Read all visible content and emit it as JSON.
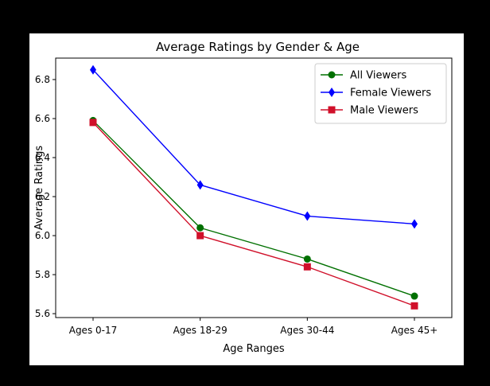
{
  "chart_data": {
    "type": "line",
    "title": "Average Ratings by Gender & Age",
    "xlabel": "Age Ranges",
    "ylabel": "Average Ratings",
    "categories": [
      "Ages 0-17",
      "Ages 18-29",
      "Ages 30-44",
      "Ages 45+"
    ],
    "ylim": [
      5.58,
      6.91
    ],
    "yticks": [
      5.6,
      5.8,
      6.0,
      6.2,
      6.4,
      6.6,
      6.8
    ],
    "ytick_labels": [
      "5.6",
      "5.8",
      "6.0",
      "6.2",
      "6.4",
      "6.6",
      "6.8"
    ],
    "grid": false,
    "legend_position": "top-right",
    "series": [
      {
        "name": "All Viewers",
        "color": "#007000",
        "marker": "circle",
        "values": [
          6.59,
          6.04,
          5.88,
          5.69
        ]
      },
      {
        "name": "Female Viewers",
        "color": "#0000ff",
        "marker": "diamond",
        "values": [
          6.85,
          6.26,
          6.1,
          6.06
        ]
      },
      {
        "name": "Male Viewers",
        "color": "#d0102a",
        "marker": "square",
        "values": [
          6.58,
          6.0,
          5.84,
          5.64
        ]
      }
    ]
  }
}
